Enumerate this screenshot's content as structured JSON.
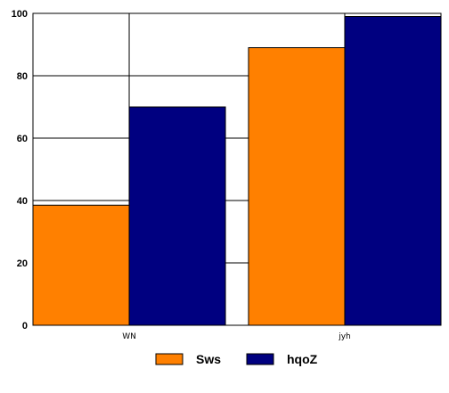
{
  "chart_data": {
    "type": "bar",
    "title": "",
    "xlabel": "",
    "ylabel": "",
    "categories": [
      "WN",
      "jyh"
    ],
    "series": [
      {
        "name": "Sws",
        "values": [
          38.5,
          89
        ],
        "color": "#ff8000"
      },
      {
        "name": "hqoZ",
        "values": [
          70,
          99
        ],
        "color": "#000080"
      }
    ],
    "ylim": [
      0,
      100
    ],
    "yticks": [
      0,
      20,
      40,
      60,
      80,
      100
    ],
    "grid": true,
    "legend_position": "bottom"
  }
}
